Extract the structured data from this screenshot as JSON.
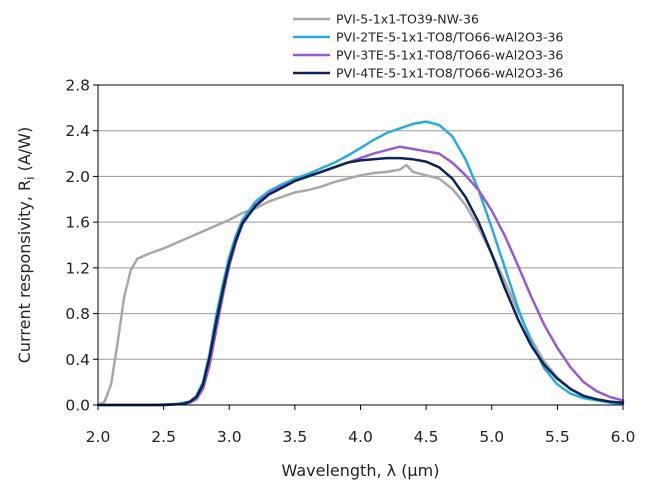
{
  "chart_data": {
    "type": "line",
    "xlabel": "Wavelength, λ (µm)",
    "ylabel": {
      "main": "Current responsivity, R",
      "sub": "i",
      "unit": " (A/W)"
    },
    "xlim": [
      2.0,
      6.0
    ],
    "ylim": [
      0.0,
      2.8
    ],
    "xticks": [
      "2.0",
      "2.5",
      "3.0",
      "3.5",
      "4.0",
      "4.5",
      "5.0",
      "5.5",
      "6.0"
    ],
    "yticks": [
      "0.0",
      "0.4",
      "0.8",
      "1.2",
      "1.6",
      "2.0",
      "2.4",
      "2.8"
    ],
    "grid": "horizontal",
    "legend_position": "top-right",
    "series": [
      {
        "name": "PVI-5-1x1-TO39-NW-36",
        "color": "#a8a8a8",
        "points": [
          [
            2.0,
            0.0
          ],
          [
            2.05,
            0.03
          ],
          [
            2.1,
            0.18
          ],
          [
            2.15,
            0.55
          ],
          [
            2.2,
            0.95
          ],
          [
            2.25,
            1.18
          ],
          [
            2.3,
            1.28
          ],
          [
            2.4,
            1.33
          ],
          [
            2.5,
            1.37
          ],
          [
            2.6,
            1.42
          ],
          [
            2.7,
            1.47
          ],
          [
            2.8,
            1.52
          ],
          [
            2.9,
            1.57
          ],
          [
            3.0,
            1.62
          ],
          [
            3.1,
            1.68
          ],
          [
            3.2,
            1.72
          ],
          [
            3.3,
            1.78
          ],
          [
            3.4,
            1.82
          ],
          [
            3.5,
            1.86
          ],
          [
            3.6,
            1.88
          ],
          [
            3.7,
            1.91
          ],
          [
            3.8,
            1.95
          ],
          [
            3.9,
            1.98
          ],
          [
            4.0,
            2.01
          ],
          [
            4.1,
            2.03
          ],
          [
            4.2,
            2.04
          ],
          [
            4.3,
            2.06
          ],
          [
            4.35,
            2.1
          ],
          [
            4.4,
            2.04
          ],
          [
            4.5,
            2.01
          ],
          [
            4.6,
            1.98
          ],
          [
            4.7,
            1.89
          ],
          [
            4.8,
            1.75
          ],
          [
            4.9,
            1.55
          ],
          [
            5.0,
            1.32
          ],
          [
            5.1,
            1.08
          ],
          [
            5.2,
            0.82
          ],
          [
            5.3,
            0.58
          ],
          [
            5.4,
            0.38
          ],
          [
            5.5,
            0.24
          ],
          [
            5.6,
            0.14
          ],
          [
            5.7,
            0.08
          ],
          [
            5.8,
            0.05
          ],
          [
            5.9,
            0.03
          ],
          [
            6.0,
            0.02
          ]
        ]
      },
      {
        "name": "PVI-2TE-5-1x1-TO8/TO66-wAl2O3-36",
        "color": "#29abe2",
        "points": [
          [
            2.0,
            0.0
          ],
          [
            2.4,
            0.0
          ],
          [
            2.6,
            0.01
          ],
          [
            2.7,
            0.03
          ],
          [
            2.75,
            0.08
          ],
          [
            2.8,
            0.2
          ],
          [
            2.85,
            0.45
          ],
          [
            2.9,
            0.78
          ],
          [
            2.95,
            1.05
          ],
          [
            3.0,
            1.3
          ],
          [
            3.05,
            1.48
          ],
          [
            3.1,
            1.62
          ],
          [
            3.2,
            1.78
          ],
          [
            3.3,
            1.87
          ],
          [
            3.4,
            1.93
          ],
          [
            3.5,
            1.98
          ],
          [
            3.6,
            2.02
          ],
          [
            3.7,
            2.07
          ],
          [
            3.8,
            2.12
          ],
          [
            3.9,
            2.18
          ],
          [
            4.0,
            2.25
          ],
          [
            4.1,
            2.32
          ],
          [
            4.2,
            2.38
          ],
          [
            4.3,
            2.42
          ],
          [
            4.4,
            2.46
          ],
          [
            4.5,
            2.48
          ],
          [
            4.6,
            2.45
          ],
          [
            4.7,
            2.35
          ],
          [
            4.8,
            2.15
          ],
          [
            4.9,
            1.88
          ],
          [
            5.0,
            1.55
          ],
          [
            5.1,
            1.2
          ],
          [
            5.2,
            0.85
          ],
          [
            5.3,
            0.55
          ],
          [
            5.4,
            0.32
          ],
          [
            5.5,
            0.18
          ],
          [
            5.6,
            0.1
          ],
          [
            5.7,
            0.06
          ],
          [
            5.8,
            0.04
          ],
          [
            5.9,
            0.02
          ],
          [
            6.0,
            0.01
          ]
        ]
      },
      {
        "name": "PVI-3TE-5-1x1-TO8/TO66-wAl2O3-36",
        "color": "#9b59d0",
        "points": [
          [
            2.0,
            0.0
          ],
          [
            2.5,
            0.0
          ],
          [
            2.65,
            0.01
          ],
          [
            2.7,
            0.02
          ],
          [
            2.75,
            0.05
          ],
          [
            2.8,
            0.14
          ],
          [
            2.85,
            0.35
          ],
          [
            2.9,
            0.65
          ],
          [
            2.95,
            0.95
          ],
          [
            3.0,
            1.22
          ],
          [
            3.05,
            1.42
          ],
          [
            3.1,
            1.58
          ],
          [
            3.2,
            1.75
          ],
          [
            3.3,
            1.85
          ],
          [
            3.4,
            1.91
          ],
          [
            3.5,
            1.96
          ],
          [
            3.6,
            2.0
          ],
          [
            3.7,
            2.04
          ],
          [
            3.8,
            2.08
          ],
          [
            3.9,
            2.12
          ],
          [
            4.0,
            2.16
          ],
          [
            4.1,
            2.2
          ],
          [
            4.2,
            2.23
          ],
          [
            4.3,
            2.26
          ],
          [
            4.4,
            2.24
          ],
          [
            4.5,
            2.22
          ],
          [
            4.6,
            2.2
          ],
          [
            4.7,
            2.12
          ],
          [
            4.8,
            2.01
          ],
          [
            4.9,
            1.88
          ],
          [
            5.0,
            1.7
          ],
          [
            5.1,
            1.48
          ],
          [
            5.2,
            1.22
          ],
          [
            5.3,
            0.95
          ],
          [
            5.4,
            0.7
          ],
          [
            5.5,
            0.5
          ],
          [
            5.6,
            0.33
          ],
          [
            5.7,
            0.2
          ],
          [
            5.8,
            0.12
          ],
          [
            5.9,
            0.07
          ],
          [
            6.0,
            0.04
          ]
        ]
      },
      {
        "name": "PVI-4TE-5-1x1-TO8/TO66-wAl2O3-36",
        "color": "#0d2257",
        "points": [
          [
            2.0,
            0.0
          ],
          [
            2.5,
            0.0
          ],
          [
            2.65,
            0.01
          ],
          [
            2.7,
            0.03
          ],
          [
            2.75,
            0.07
          ],
          [
            2.8,
            0.18
          ],
          [
            2.85,
            0.42
          ],
          [
            2.9,
            0.72
          ],
          [
            2.95,
            1.0
          ],
          [
            3.0,
            1.25
          ],
          [
            3.05,
            1.44
          ],
          [
            3.1,
            1.59
          ],
          [
            3.2,
            1.74
          ],
          [
            3.3,
            1.84
          ],
          [
            3.4,
            1.9
          ],
          [
            3.5,
            1.96
          ],
          [
            3.6,
            2.0
          ],
          [
            3.7,
            2.04
          ],
          [
            3.8,
            2.08
          ],
          [
            3.9,
            2.12
          ],
          [
            4.0,
            2.14
          ],
          [
            4.1,
            2.15
          ],
          [
            4.2,
            2.16
          ],
          [
            4.3,
            2.16
          ],
          [
            4.4,
            2.15
          ],
          [
            4.5,
            2.13
          ],
          [
            4.6,
            2.08
          ],
          [
            4.7,
            1.98
          ],
          [
            4.8,
            1.82
          ],
          [
            4.9,
            1.6
          ],
          [
            5.0,
            1.32
          ],
          [
            5.1,
            1.02
          ],
          [
            5.2,
            0.75
          ],
          [
            5.3,
            0.52
          ],
          [
            5.4,
            0.35
          ],
          [
            5.5,
            0.23
          ],
          [
            5.6,
            0.14
          ],
          [
            5.7,
            0.08
          ],
          [
            5.8,
            0.05
          ],
          [
            5.9,
            0.03
          ],
          [
            6.0,
            0.02
          ]
        ]
      }
    ]
  }
}
